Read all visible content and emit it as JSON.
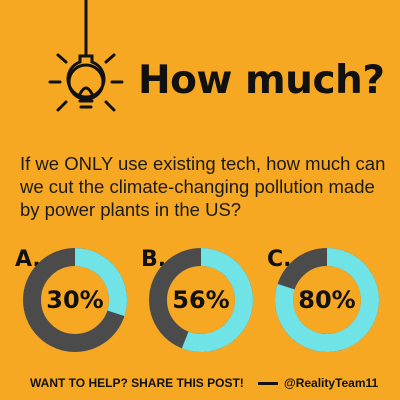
{
  "title": "How much?",
  "question": "If we ONLY use existing tech, how much can we cut the climate-changing pollution made by power plants in the US?",
  "footer": {
    "cta": "WANT TO HELP? SHARE THIS POST!",
    "handle": "@RealityTeam11"
  },
  "chart_data": [
    {
      "type": "donut",
      "title": "A.",
      "values": [
        30
      ],
      "value_labels": [
        "30%"
      ],
      "color": "#6FE3E6",
      "track_color": "#4B4B4B"
    },
    {
      "type": "donut",
      "title": "B.",
      "values": [
        56
      ],
      "value_labels": [
        "56%"
      ],
      "color": "#6FE3E6",
      "track_color": "#4B4B4B"
    },
    {
      "type": "donut",
      "title": "C.",
      "values": [
        80
      ],
      "value_labels": [
        "80%"
      ],
      "color": "#6FE3E6",
      "track_color": "#4B4B4B"
    }
  ]
}
